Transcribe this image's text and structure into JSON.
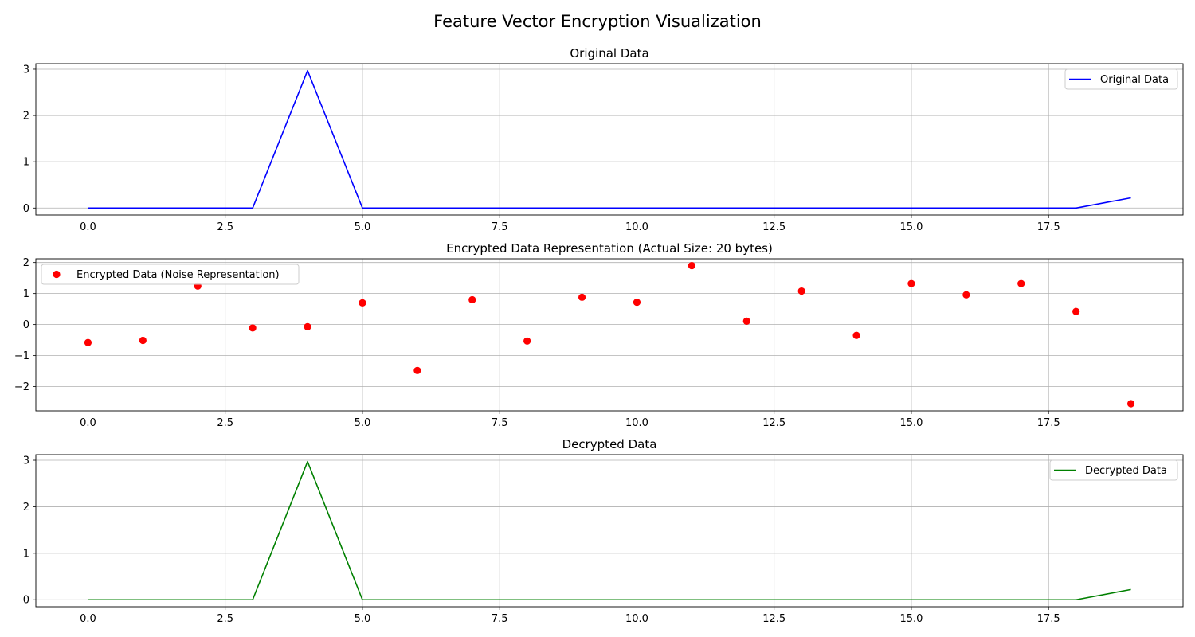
{
  "figure": {
    "title": "Feature Vector Encryption Visualization"
  },
  "chart_data": [
    {
      "type": "line",
      "title": "Original Data",
      "xlabel": "",
      "ylabel": "",
      "x": [
        0,
        1,
        2,
        3,
        4,
        5,
        6,
        7,
        8,
        9,
        10,
        11,
        12,
        13,
        14,
        15,
        16,
        17,
        18,
        19
      ],
      "series": [
        {
          "name": "Original Data",
          "values": [
            0,
            0,
            0,
            0,
            2.97,
            0,
            0,
            0,
            0,
            0,
            0,
            0,
            0,
            0,
            0,
            0,
            0,
            0,
            0,
            0.22
          ],
          "color": "#0000ff"
        }
      ],
      "xlim": [
        -0.95,
        19.95
      ],
      "ylim": [
        -0.15,
        3.12
      ],
      "xticks": [
        0.0,
        2.5,
        5.0,
        7.5,
        10.0,
        12.5,
        15.0,
        17.5
      ],
      "xtick_labels": [
        "0.0",
        "2.5",
        "5.0",
        "7.5",
        "10.0",
        "12.5",
        "15.0",
        "17.5"
      ],
      "yticks": [
        0,
        1,
        2,
        3
      ],
      "ytick_labels": [
        "0",
        "1",
        "2",
        "3"
      ],
      "grid": true,
      "legend_position": "top-right"
    },
    {
      "type": "scatter",
      "title": "Encrypted Data Representation (Actual Size: 20 bytes)",
      "xlabel": "",
      "ylabel": "",
      "x": [
        0,
        1,
        2,
        3,
        4,
        5,
        6,
        7,
        8,
        9,
        10,
        11,
        12,
        13,
        14,
        15,
        16,
        17,
        18,
        19
      ],
      "series": [
        {
          "name": "Encrypted Data (Noise Representation)",
          "values": [
            -0.58,
            -0.51,
            1.24,
            -0.11,
            -0.07,
            0.7,
            -1.48,
            0.8,
            -0.53,
            0.88,
            0.72,
            1.9,
            0.11,
            1.08,
            -0.35,
            1.32,
            0.96,
            1.32,
            0.42,
            -2.55
          ],
          "color": "#ff0000"
        }
      ],
      "xlim": [
        -0.95,
        19.95
      ],
      "ylim": [
        -2.78,
        2.12
      ],
      "xticks": [
        0.0,
        2.5,
        5.0,
        7.5,
        10.0,
        12.5,
        15.0,
        17.5
      ],
      "xtick_labels": [
        "0.0",
        "2.5",
        "5.0",
        "7.5",
        "10.0",
        "12.5",
        "15.0",
        "17.5"
      ],
      "yticks": [
        -2,
        -1,
        0,
        1,
        2
      ],
      "ytick_labels": [
        "−2",
        "−1",
        "0",
        "1",
        "2"
      ],
      "grid": true,
      "legend_position": "top-left"
    },
    {
      "type": "line",
      "title": "Decrypted Data",
      "xlabel": "",
      "ylabel": "",
      "x": [
        0,
        1,
        2,
        3,
        4,
        5,
        6,
        7,
        8,
        9,
        10,
        11,
        12,
        13,
        14,
        15,
        16,
        17,
        18,
        19
      ],
      "series": [
        {
          "name": "Decrypted Data",
          "values": [
            0,
            0,
            0,
            0,
            2.97,
            0,
            0,
            0,
            0,
            0,
            0,
            0,
            0,
            0,
            0,
            0,
            0,
            0,
            0,
            0.22
          ],
          "color": "#008000"
        }
      ],
      "xlim": [
        -0.95,
        19.95
      ],
      "ylim": [
        -0.15,
        3.12
      ],
      "xticks": [
        0.0,
        2.5,
        5.0,
        7.5,
        10.0,
        12.5,
        15.0,
        17.5
      ],
      "xtick_labels": [
        "0.0",
        "2.5",
        "5.0",
        "7.5",
        "10.0",
        "12.5",
        "15.0",
        "17.5"
      ],
      "yticks": [
        0,
        1,
        2,
        3
      ],
      "ytick_labels": [
        "0",
        "1",
        "2",
        "3"
      ],
      "grid": true,
      "legend_position": "top-right"
    }
  ]
}
